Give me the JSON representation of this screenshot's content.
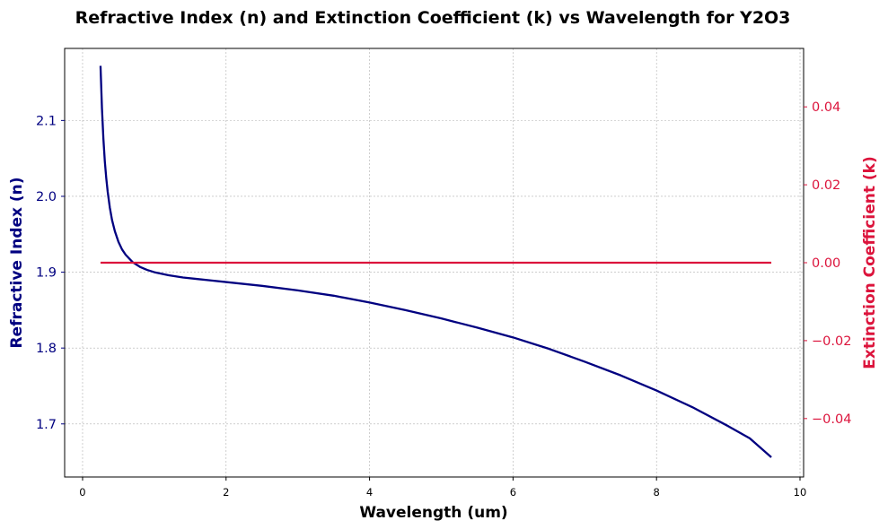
{
  "chart_data": {
    "type": "line",
    "title": "Refractive Index (n) and Extinction Coefficient (k) vs Wavelength for Y2O3",
    "xlabel": "Wavelength (um)",
    "ylabel_left": "Refractive Index (n)",
    "ylabel_right": "Extinction Coefficient (k)",
    "xlim": [
      -0.25,
      10.05
    ],
    "ylim_left": [
      1.63,
      2.195
    ],
    "ylim_right": [
      -0.055,
      0.055
    ],
    "x_ticks": [
      "0",
      "2",
      "4",
      "6",
      "8",
      "10"
    ],
    "y_left_ticks": [
      "1.7",
      "1.8",
      "1.9",
      "2.0",
      "2.1"
    ],
    "y_right_ticks": [
      "−0.04",
      "−0.02",
      "0.00",
      "0.02",
      "0.04"
    ],
    "grid": true,
    "colors": {
      "n": "#000080",
      "k": "#dc143c"
    },
    "series": [
      {
        "axis": "left",
        "x": [
          0.25,
          0.27,
          0.29,
          0.31,
          0.33,
          0.35,
          0.38,
          0.41,
          0.45,
          0.5,
          0.55,
          0.6,
          0.7,
          0.8,
          0.9,
          1.0,
          1.2,
          1.4,
          1.6,
          1.8,
          2.0,
          2.5,
          3.0,
          3.5,
          4.0,
          4.5,
          5.0,
          5.5,
          6.0,
          6.5,
          7.0,
          7.5,
          8.0,
          8.5,
          9.0,
          9.3,
          9.6
        ],
        "values": [
          2.172,
          2.116,
          2.076,
          2.046,
          2.024,
          2.006,
          1.985,
          1.969,
          1.954,
          1.94,
          1.93,
          1.923,
          1.913,
          1.907,
          1.903,
          1.9,
          1.896,
          1.893,
          1.891,
          1.889,
          1.887,
          1.882,
          1.876,
          1.869,
          1.86,
          1.85,
          1.839,
          1.827,
          1.814,
          1.799,
          1.782,
          1.764,
          1.744,
          1.722,
          1.697,
          1.681,
          1.656
        ]
      },
      {
        "axis": "right",
        "x": [
          0.25,
          9.6
        ],
        "values": [
          0.0,
          0.0
        ]
      }
    ]
  }
}
